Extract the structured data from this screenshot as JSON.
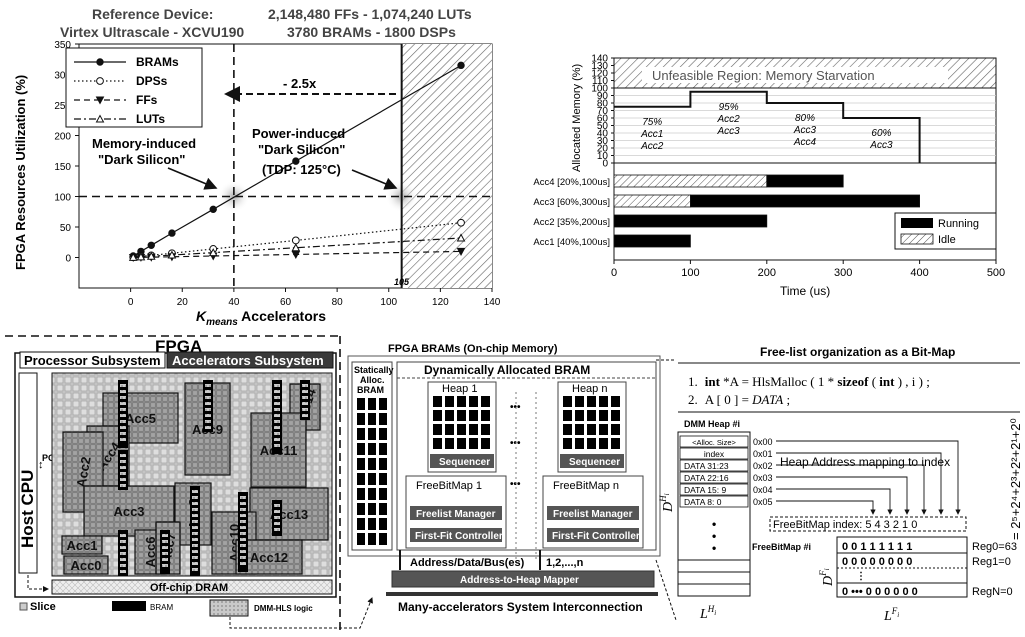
{
  "colors": {
    "ink": "#111111",
    "grey_fill": "#9a9a9a",
    "light_fill": "#e2e2e2",
    "running": "#000000",
    "bram": "#000000"
  },
  "chart_data": [
    {
      "type": "line",
      "title_left": "Reference Device:",
      "subtitle_left": "Virtex Ultrascale - XCVU190",
      "title_right": "2,148,480 FFs - 1,074,240 LUTs",
      "subtitle_right": "3780 BRAMs - 1800 DSPs",
      "ylabel": "FPGA Resources Utilization (%)",
      "xlabel_k": "K",
      "xlabel_sub": "means",
      "xlabel_rest": " Accelerators",
      "xlim": [
        -20,
        140
      ],
      "ylim": [
        -50,
        350
      ],
      "x_ticks": [
        0,
        20,
        40,
        60,
        80,
        100,
        120,
        140
      ],
      "y_ticks": [
        0,
        50,
        100,
        150,
        200,
        250,
        300,
        350
      ],
      "legend_position": "top-left",
      "series": [
        {
          "name": "BRAMs",
          "marker": "filled-circle",
          "style": "solid",
          "x": [
            1,
            4,
            8,
            16,
            32,
            64,
            128
          ],
          "y": [
            2.5,
            10,
            20,
            40,
            79,
            158,
            315
          ]
        },
        {
          "name": "DPSs",
          "marker": "open-circle",
          "style": "dotted",
          "x": [
            1,
            4,
            8,
            16,
            32,
            64,
            128
          ],
          "y": [
            0.4,
            1.8,
            3.5,
            7,
            14,
            28,
            57
          ]
        },
        {
          "name": "FFs",
          "marker": "filled-triangle-down",
          "style": "dashed",
          "x": [
            1,
            4,
            8,
            16,
            32,
            64,
            128
          ],
          "y": [
            0.1,
            0.3,
            0.6,
            1.2,
            2.5,
            5,
            10
          ]
        },
        {
          "name": "LUTs",
          "marker": "open-triangle",
          "style": "dash-dot",
          "x": [
            1,
            4,
            8,
            16,
            32,
            64,
            128
          ],
          "y": [
            0.3,
            1,
            2,
            4,
            8,
            16,
            32
          ]
        }
      ],
      "annotations": {
        "memory_line": "Memory-induced",
        "memory_line2": "\"Dark Silicon\"",
        "power_line": "Power-induced",
        "power_line2": "\"Dark Silicon\"",
        "tdp": "(TDP: 125°C)",
        "ratio": "- 2.5x",
        "tick_105": "105"
      }
    },
    {
      "type": "bar",
      "ylabel": "Allocated Memory (%)",
      "xlabel": "Time (us)",
      "unfeasible": "Unfeasible Region: Memory Starvation",
      "xlim": [
        0,
        500
      ],
      "ylim": [
        0,
        140
      ],
      "x_ticks": [
        0,
        100,
        200,
        300,
        400,
        500
      ],
      "y_ticks": [
        0,
        10,
        20,
        30,
        40,
        50,
        60,
        70,
        80,
        90,
        100,
        110,
        120,
        130,
        140
      ],
      "step": [
        {
          "t0": 0,
          "t1": 100,
          "value": 75,
          "label": "75%",
          "accs": "Acc1\nAcc2"
        },
        {
          "t0": 100,
          "t1": 200,
          "value": 95,
          "label": "95%",
          "accs": "Acc2\nAcc3"
        },
        {
          "t0": 200,
          "t1": 300,
          "value": 80,
          "label": "80%",
          "accs": "Acc3\nAcc4"
        },
        {
          "t0": 300,
          "t1": 400,
          "value": 60,
          "label": "60%",
          "accs": "Acc3"
        }
      ],
      "gantt": [
        {
          "name": "Acc4 [20%,100us]",
          "segments": [
            {
              "t0": 0,
              "t1": 200,
              "state": "idle"
            },
            {
              "t0": 200,
              "t1": 300,
              "state": "running"
            }
          ]
        },
        {
          "name": "Acc3 [60%,300us]",
          "segments": [
            {
              "t0": 0,
              "t1": 100,
              "state": "idle"
            },
            {
              "t0": 100,
              "t1": 400,
              "state": "running"
            }
          ]
        },
        {
          "name": "Acc2 [35%,200us]",
          "segments": [
            {
              "t0": 0,
              "t1": 200,
              "state": "running"
            }
          ]
        },
        {
          "name": "Acc1 [40%,100us]",
          "segments": [
            {
              "t0": 0,
              "t1": 100,
              "state": "running"
            }
          ]
        }
      ],
      "legend": {
        "running": "Running",
        "idle": "Idle"
      },
      "legend_position": "bottom-right"
    }
  ],
  "fpga": {
    "title": "FPGA",
    "processor_subsystem": "Processor Subsystem",
    "accelerators_subsystem": "Accelerators Subsystem",
    "host_cpu": "Host CPU",
    "pci": "PCI",
    "offchip": "Off-chip DRAM",
    "legend_slice": "Slice",
    "legend_bram": "BRAM",
    "legend_dmm": "DMM-HLS logic",
    "accs": [
      "Acc5",
      "Acc4",
      "Acc9",
      "Acc14",
      "Acc11",
      "Acc2",
      "Acc3",
      "Acc8",
      "Acc13",
      "Acc1",
      "Acc6",
      "Acc7",
      "Acc10",
      "Acc12",
      "Acc0"
    ]
  },
  "brams": {
    "title": "FPGA BRAMs (On-chip Memory)",
    "static_line1": "Statically",
    "static_line2": "Alloc.",
    "static_line3": "BRAM",
    "dynamic": "Dynamically Allocated BRAM",
    "heap1": "Heap 1",
    "heapn": "Heap n",
    "sequencer": "Sequencer",
    "freebitmap1": "FreeBitMap 1",
    "freebitmapn": "FreeBitMap n",
    "freelist": "Freelist Manager",
    "firstfit": "First-Fit Controller",
    "dots": "•••",
    "bus": "Address/Data/Bus(es)",
    "bus_idx": "1,2,...,n",
    "mapper": "Address-to-Heap Mapper",
    "interconnect": "Many-accelerators System Interconnection"
  },
  "bitmap": {
    "title": "Free-list organization as a Bit-Map",
    "code1_kw": "int",
    "code1_a": " *A = HlsMalloc ( 1 * ",
    "code1_sizeof": "sizeof",
    "code1_b": " ( ",
    "code1_int": "int",
    "code1_c": " ) ,  i )  ;",
    "code2": "A [ 0 ] = ",
    "code2_data": "DATA",
    "code2_end": " ;",
    "n1": "1.",
    "n2": "2.",
    "heap_title": "DMM Heap #i",
    "heap_rows": [
      "<Alloc. Size>",
      "index",
      "DATA 31:23",
      "DATA 22:16",
      "DATA 15: 9",
      "DATA  8: 0"
    ],
    "addrs": [
      "0x00",
      "0x01",
      "0x02",
      "0x03",
      "0x04",
      "0x05"
    ],
    "mapping": "Heap Address mapping to index",
    "fbm_index": "FreeBitMap index:  5  4  3  2  1  0",
    "fbm_title": "FreeBitMap #i",
    "reg0": "0      0  1  1  1  1  1  1",
    "reg1": "0  0  0  0  0  0  0  0",
    "regn": "0 •••  0  0  0  0  0  0",
    "reg0_label": "Reg0=63",
    "reg1_label": "Reg1=0",
    "regn_label": "RegN=0",
    "formula": "= 2⁵+2⁴+2³+2²+2¹+2⁰",
    "d_h": "D",
    "d_h_sub": "H",
    "d_h_i": "i",
    "l_h": "L",
    "d_f": "D",
    "d_f_sub": "F",
    "l_f": "L"
  }
}
